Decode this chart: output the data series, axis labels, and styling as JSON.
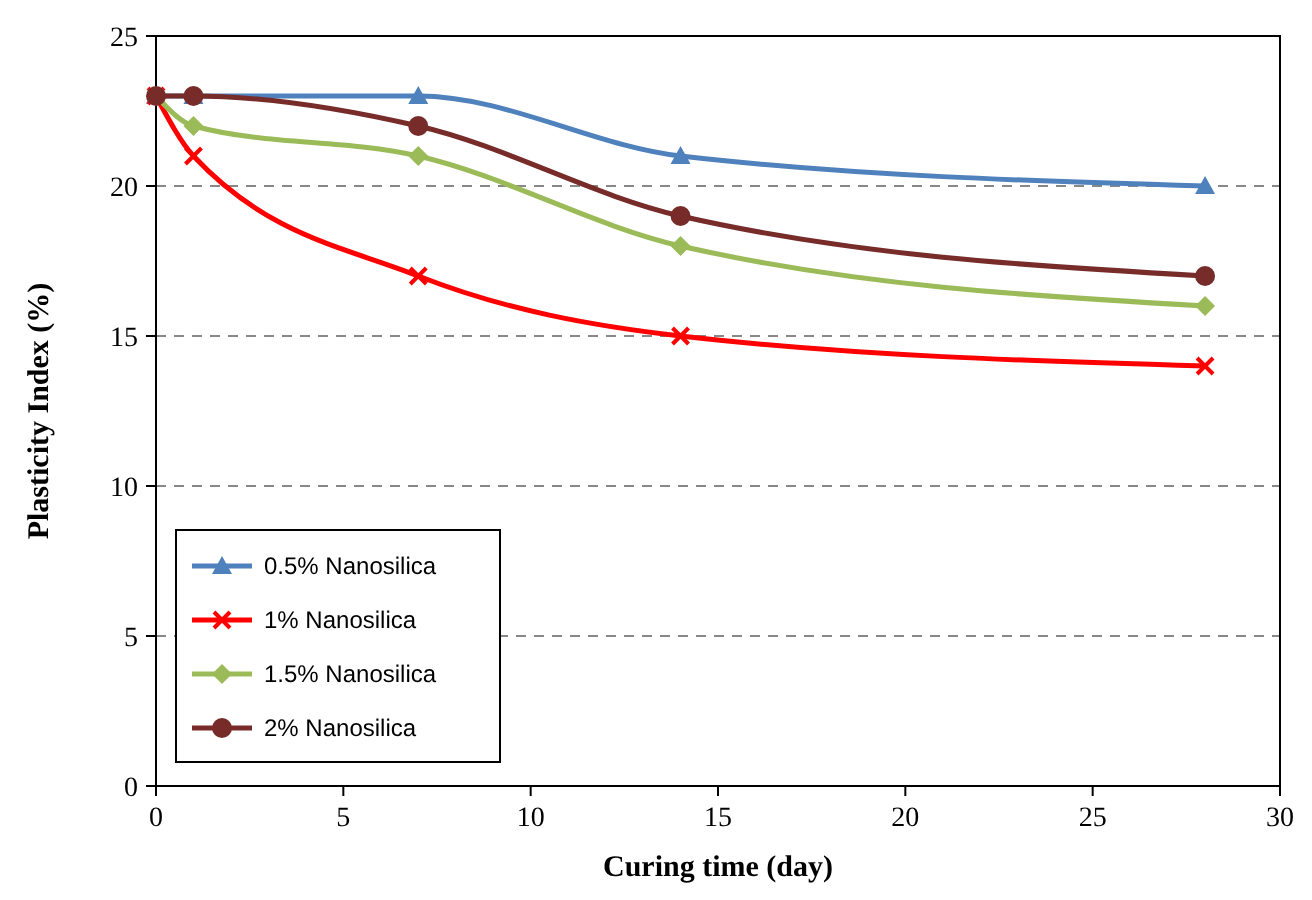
{
  "chart_data": {
    "type": "line",
    "xlabel": "Curing time (day)",
    "ylabel": "Plasticity Index (%)",
    "x": [
      0,
      1,
      7,
      14,
      28
    ],
    "series": [
      {
        "name": "0.5% Nanosilica",
        "color": "#4f81bd",
        "marker": "triangle",
        "values": [
          23,
          23,
          23,
          21,
          20
        ]
      },
      {
        "name": "1% Nanosilica",
        "color": "#ff0000",
        "marker": "cross",
        "values": [
          23,
          21,
          17,
          15,
          14
        ]
      },
      {
        "name": "1.5% Nanosilica",
        "color": "#9bbb59",
        "marker": "diamond",
        "values": [
          23,
          22,
          21,
          18,
          16
        ]
      },
      {
        "name": "2% Nanosilica",
        "color": "#772c2a",
        "marker": "circle",
        "values": [
          23,
          23,
          22,
          19,
          17
        ]
      }
    ],
    "xlim": [
      0,
      30
    ],
    "xticks": [
      0,
      5,
      10,
      15,
      20,
      25,
      30
    ],
    "ylim": [
      0,
      25
    ],
    "yticks": [
      0,
      5,
      10,
      15,
      20,
      25
    ],
    "grid": "y",
    "legend": "bottom left",
    "line_style": "solid"
  }
}
